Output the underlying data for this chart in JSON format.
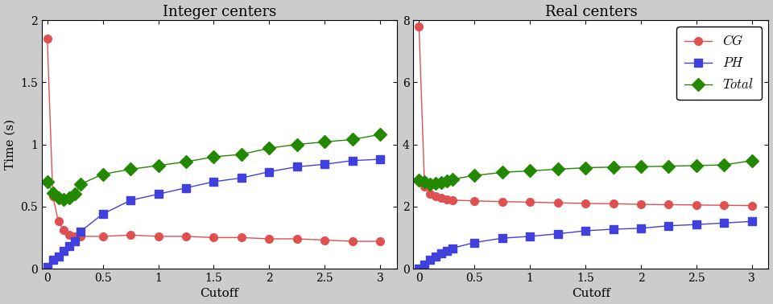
{
  "left_title": "Integer centers",
  "right_title": "Real centers",
  "xlabel": "Cutoff",
  "ylabel": "Time (s)",
  "legend_labels": [
    "CG",
    "PH",
    "Total"
  ],
  "legend_styles": {
    "CG": {
      "color": "#e05050",
      "marker": "o"
    },
    "PH": {
      "color": "#4040dd",
      "marker": "s"
    },
    "Total": {
      "color": "#228800",
      "marker": "D"
    }
  },
  "left": {
    "cutoff": [
      0.0,
      0.05,
      0.1,
      0.15,
      0.2,
      0.25,
      0.3,
      0.5,
      0.75,
      1.0,
      1.25,
      1.5,
      1.75,
      2.0,
      2.25,
      2.5,
      2.75,
      3.0
    ],
    "CG": [
      1.85,
      0.58,
      0.38,
      0.31,
      0.27,
      0.26,
      0.26,
      0.26,
      0.27,
      0.26,
      0.26,
      0.25,
      0.25,
      0.24,
      0.24,
      0.23,
      0.22,
      0.22
    ],
    "PH": [
      0.01,
      0.07,
      0.1,
      0.14,
      0.18,
      0.22,
      0.3,
      0.44,
      0.55,
      0.6,
      0.65,
      0.7,
      0.73,
      0.78,
      0.82,
      0.84,
      0.87,
      0.88
    ],
    "Total": [
      0.7,
      0.61,
      0.57,
      0.56,
      0.57,
      0.6,
      0.68,
      0.76,
      0.8,
      0.83,
      0.86,
      0.9,
      0.92,
      0.97,
      1.0,
      1.02,
      1.04,
      1.08
    ],
    "ylim": [
      0,
      2
    ],
    "yticks": [
      0,
      0.5,
      1.0,
      1.5,
      2.0
    ],
    "xticks": [
      0,
      0.5,
      1,
      1.5,
      2,
      2.5,
      3
    ]
  },
  "right": {
    "cutoff": [
      0.0,
      0.05,
      0.1,
      0.15,
      0.2,
      0.25,
      0.3,
      0.5,
      0.75,
      1.0,
      1.25,
      1.5,
      1.75,
      2.0,
      2.25,
      2.5,
      2.75,
      3.0
    ],
    "CG": [
      7.8,
      2.65,
      2.42,
      2.33,
      2.28,
      2.24,
      2.21,
      2.18,
      2.16,
      2.14,
      2.12,
      2.1,
      2.09,
      2.07,
      2.06,
      2.05,
      2.04,
      2.03
    ],
    "PH": [
      0.01,
      0.13,
      0.28,
      0.4,
      0.5,
      0.58,
      0.66,
      0.84,
      0.98,
      1.04,
      1.12,
      1.22,
      1.27,
      1.3,
      1.38,
      1.42,
      1.47,
      1.52
    ],
    "Total": [
      2.85,
      2.8,
      2.72,
      2.75,
      2.78,
      2.82,
      2.88,
      3.0,
      3.1,
      3.15,
      3.2,
      3.25,
      3.27,
      3.28,
      3.3,
      3.32,
      3.34,
      3.48
    ],
    "ylim": [
      0,
      8
    ],
    "yticks": [
      0,
      2,
      4,
      6,
      8
    ],
    "xticks": [
      0,
      0.5,
      1,
      1.5,
      2,
      2.5,
      3
    ]
  },
  "bg_color": "#ffffff",
  "fig_bg_color": "#cccccc",
  "title_fontsize": 13,
  "label_fontsize": 11,
  "tick_fontsize": 10,
  "legend_fontsize": 12
}
